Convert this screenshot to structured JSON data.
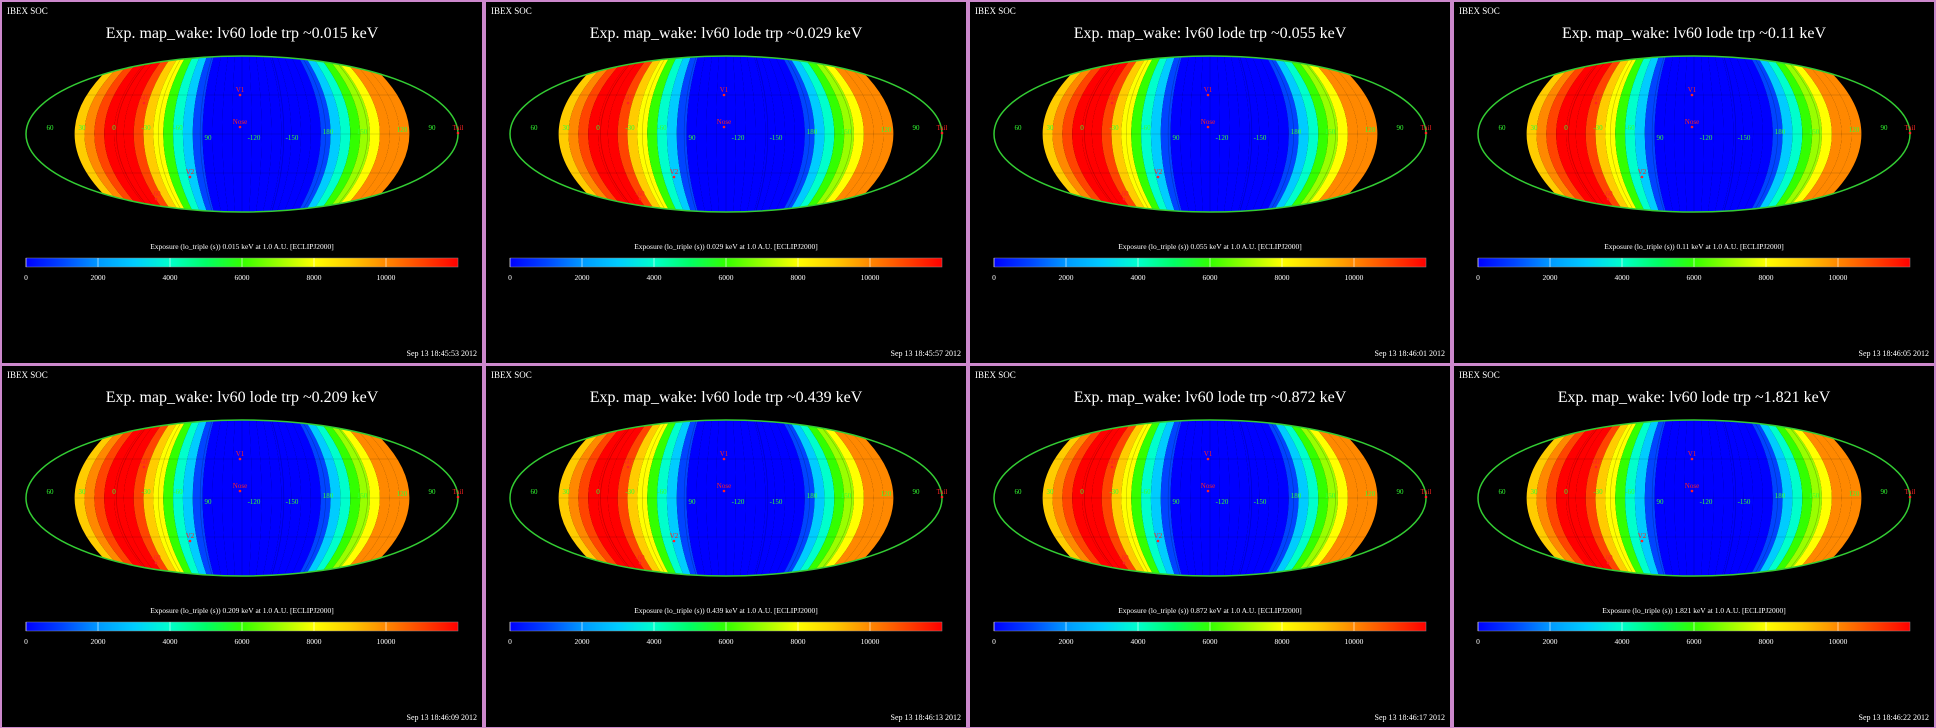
{
  "chart_data": [
    {
      "type": "heatmap",
      "org": "IBEX SOC",
      "title": "Exp.   map_wake: lv60 lode trp ~0.015 keV",
      "colorbar_label": "Exposure (lo_triple (s))  0.015 keV at 1.0 A.U. [ECLIPJ2000]",
      "colorbar_ticks": [
        "0",
        "2000",
        "4000",
        "6000",
        "8000",
        "10000"
      ],
      "colorbar_range": [
        0,
        12000
      ],
      "timestamp": "Sep 13 18:45:53 2012"
    },
    {
      "type": "heatmap",
      "org": "IBEX SOC",
      "title": "Exp.   map_wake: lv60 lode trp ~0.029 keV",
      "colorbar_label": "Exposure (lo_triple (s))  0.029 keV at 1.0 A.U. [ECLIPJ2000]",
      "colorbar_ticks": [
        "0",
        "2000",
        "4000",
        "6000",
        "8000",
        "10000"
      ],
      "colorbar_range": [
        0,
        12000
      ],
      "timestamp": "Sep 13 18:45:57 2012"
    },
    {
      "type": "heatmap",
      "org": "IBEX SOC",
      "title": "Exp.   map_wake: lv60 lode trp ~0.055 keV",
      "colorbar_label": "Exposure (lo_triple (s))  0.055 keV at 1.0 A.U. [ECLIPJ2000]",
      "colorbar_ticks": [
        "0",
        "2000",
        "4000",
        "6000",
        "8000",
        "10000"
      ],
      "colorbar_range": [
        0,
        12000
      ],
      "timestamp": "Sep 13 18:46:01 2012"
    },
    {
      "type": "heatmap",
      "org": "IBEX SOC",
      "title": "Exp.   map_wake: lv60 lode trp ~0.11 keV",
      "colorbar_label": "Exposure (lo_triple (s))  0.11 keV at 1.0 A.U. [ECLIPJ2000]",
      "colorbar_ticks": [
        "0",
        "2000",
        "4000",
        "6000",
        "8000",
        "10000"
      ],
      "colorbar_range": [
        0,
        12000
      ],
      "timestamp": "Sep 13 18:46:05 2012"
    },
    {
      "type": "heatmap",
      "org": "IBEX SOC",
      "title": "Exp.   map_wake: lv60 lode trp ~0.209 keV",
      "colorbar_label": "Exposure (lo_triple (s))  0.209 keV at 1.0 A.U. [ECLIPJ2000]",
      "colorbar_ticks": [
        "0",
        "2000",
        "4000",
        "6000",
        "8000",
        "10000"
      ],
      "colorbar_range": [
        0,
        12000
      ],
      "timestamp": "Sep 13 18:46:09 2012"
    },
    {
      "type": "heatmap",
      "org": "IBEX SOC",
      "title": "Exp.   map_wake: lv60 lode trp ~0.439 keV",
      "colorbar_label": "Exposure (lo_triple (s))  0.439 keV at 1.0 A.U. [ECLIPJ2000]",
      "colorbar_ticks": [
        "0",
        "2000",
        "4000",
        "6000",
        "8000",
        "10000"
      ],
      "colorbar_range": [
        0,
        12000
      ],
      "timestamp": "Sep 13 18:46:13 2012"
    },
    {
      "type": "heatmap",
      "org": "IBEX SOC",
      "title": "Exp.   map_wake: lv60 lode trp ~0.872 keV",
      "colorbar_label": "Exposure (lo_triple (s))  0.872 keV at 1.0 A.U. [ECLIPJ2000]",
      "colorbar_ticks": [
        "0",
        "2000",
        "4000",
        "6000",
        "8000",
        "10000"
      ],
      "colorbar_range": [
        0,
        12000
      ],
      "timestamp": "Sep 13 18:46:17 2012"
    },
    {
      "type": "heatmap",
      "org": "IBEX SOC",
      "title": "Exp.   map_wake: lv60 lode trp ~1.821 keV",
      "colorbar_label": "Exposure (lo_triple (s))  1.821 keV at 1.0 A.U. [ECLIPJ2000]",
      "colorbar_ticks": [
        "0",
        "2000",
        "4000",
        "6000",
        "8000",
        "10000"
      ],
      "colorbar_range": [
        0,
        12000
      ],
      "timestamp": "Sep 13 18:46:22 2012"
    }
  ],
  "map_labels": {
    "green": [
      "60",
      "30",
      "0",
      "-30",
      "-60",
      "90",
      "-120",
      "-150",
      "180",
      "150",
      "120",
      "90"
    ],
    "red": [
      "V1",
      "Nose",
      "V2",
      "60",
      "-60",
      "Tail"
    ]
  },
  "colors": {
    "background": "#000000",
    "border": "#cc88cc",
    "text": "#ffffff",
    "grid_label": "#33ff33",
    "marker": "#ff2222",
    "colorscale": [
      "#0000ff",
      "#0044ff",
      "#0099ff",
      "#00ccff",
      "#00ffcc",
      "#00ff66",
      "#33ff00",
      "#99ff00",
      "#ffff00",
      "#ffcc00",
      "#ff8800",
      "#ff4400",
      "#ff0000"
    ]
  }
}
